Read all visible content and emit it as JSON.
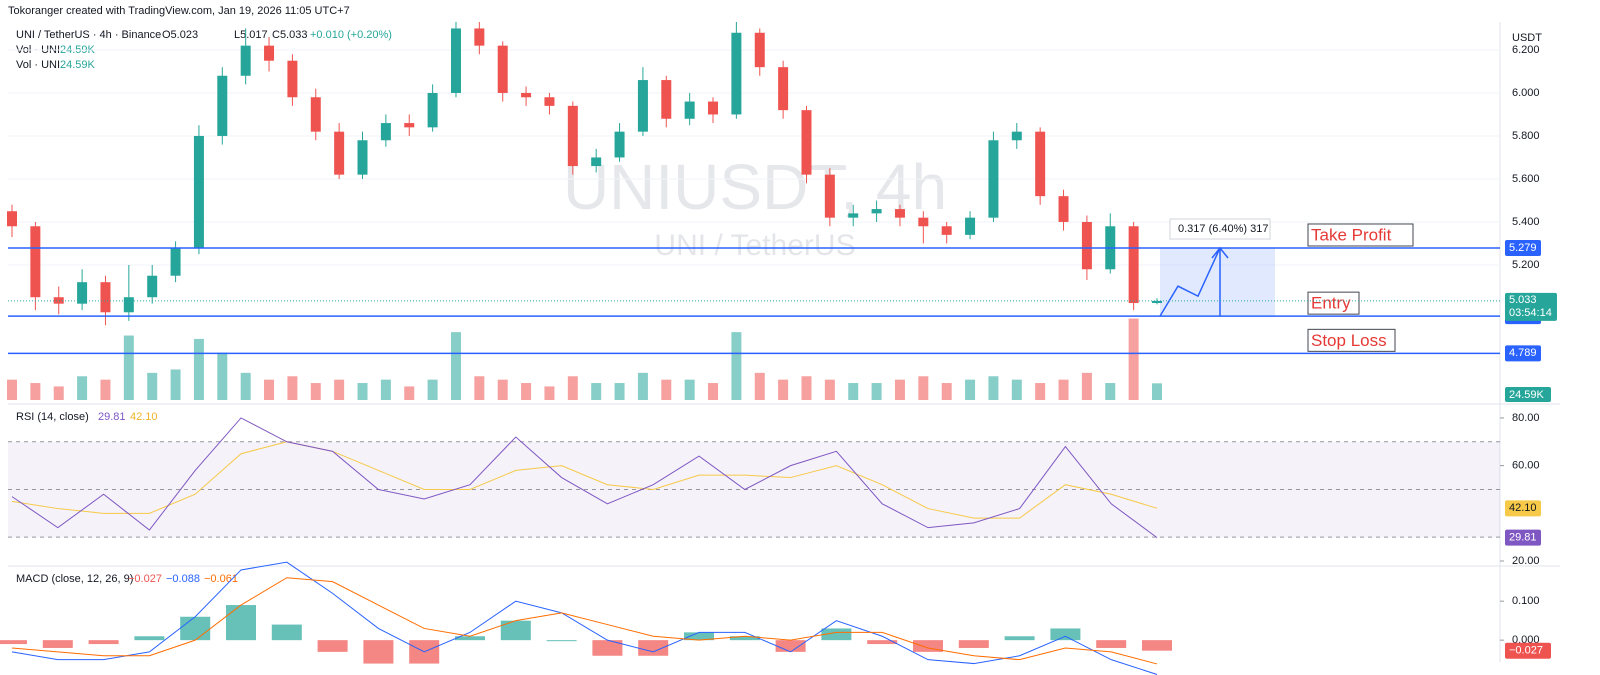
{
  "chart_data": {
    "type": "candlestick",
    "attribution": "Tokoranger created with TradingView.com, Jan 19, 2026 11:05 UTC+7",
    "symbol": "UNI / TetherUS · 4h · Binance",
    "ohlc_labels": [
      "O5.023",
      "L5.017",
      "C5.033"
    ],
    "change": "+0.010 (+0.20%)",
    "watermark": [
      "UNIUSDT, 4h",
      "UNI / TetherUS"
    ],
    "currency": "USDT",
    "up_color": "#26a69a",
    "down_color": "#ef5350",
    "candles": [
      [
        5.45,
        5.48,
        5.33,
        5.38
      ],
      [
        5.38,
        5.4,
        4.99,
        5.05
      ],
      [
        5.05,
        5.1,
        4.97,
        5.02
      ],
      [
        5.02,
        5.18,
        4.99,
        5.12
      ],
      [
        5.12,
        5.15,
        4.92,
        4.98
      ],
      [
        4.98,
        5.2,
        4.94,
        5.05
      ],
      [
        5.05,
        5.2,
        5.02,
        5.15
      ],
      [
        5.15,
        5.31,
        5.12,
        5.28
      ],
      [
        5.28,
        5.85,
        5.25,
        5.8
      ],
      [
        5.8,
        6.12,
        5.76,
        6.08
      ],
      [
        6.08,
        6.3,
        6.04,
        6.22
      ],
      [
        6.22,
        6.26,
        6.1,
        6.15
      ],
      [
        6.15,
        6.18,
        5.94,
        5.98
      ],
      [
        5.98,
        6.02,
        5.78,
        5.82
      ],
      [
        5.82,
        5.86,
        5.6,
        5.62
      ],
      [
        5.62,
        5.82,
        5.6,
        5.78
      ],
      [
        5.78,
        5.9,
        5.75,
        5.86
      ],
      [
        5.86,
        5.9,
        5.8,
        5.84
      ],
      [
        5.84,
        6.04,
        5.82,
        6.0
      ],
      [
        6.0,
        6.33,
        5.98,
        6.3
      ],
      [
        6.3,
        6.33,
        6.18,
        6.22
      ],
      [
        6.22,
        6.24,
        5.96,
        6.0
      ],
      [
        6.0,
        6.03,
        5.94,
        5.98
      ],
      [
        5.98,
        6.0,
        5.9,
        5.94
      ],
      [
        5.94,
        5.96,
        5.62,
        5.66
      ],
      [
        5.66,
        5.74,
        5.63,
        5.7
      ],
      [
        5.7,
        5.86,
        5.68,
        5.82
      ],
      [
        5.82,
        6.12,
        5.8,
        6.06
      ],
      [
        6.06,
        6.08,
        5.84,
        5.88
      ],
      [
        5.88,
        6.0,
        5.85,
        5.96
      ],
      [
        5.96,
        5.98,
        5.86,
        5.9
      ],
      [
        5.9,
        6.33,
        5.88,
        6.28
      ],
      [
        6.28,
        6.3,
        6.08,
        6.12
      ],
      [
        6.12,
        6.15,
        5.88,
        5.92
      ],
      [
        5.92,
        5.94,
        5.58,
        5.62
      ],
      [
        5.62,
        5.65,
        5.38,
        5.42
      ],
      [
        5.42,
        5.48,
        5.38,
        5.44
      ],
      [
        5.44,
        5.5,
        5.4,
        5.46
      ],
      [
        5.46,
        5.48,
        5.38,
        5.42
      ],
      [
        5.42,
        5.45,
        5.3,
        5.38
      ],
      [
        5.38,
        5.4,
        5.3,
        5.34
      ],
      [
        5.34,
        5.45,
        5.32,
        5.42
      ],
      [
        5.42,
        5.82,
        5.4,
        5.78
      ],
      [
        5.78,
        5.86,
        5.74,
        5.82
      ],
      [
        5.82,
        5.84,
        5.48,
        5.52
      ],
      [
        5.52,
        5.55,
        5.36,
        5.4
      ],
      [
        5.4,
        5.43,
        5.13,
        5.18
      ],
      [
        5.18,
        5.44,
        5.16,
        5.38
      ],
      [
        5.38,
        5.4,
        4.99,
        5.023
      ],
      [
        5.023,
        5.045,
        5.017,
        5.033
      ]
    ],
    "ylim": [
      4.572,
      6.33
    ],
    "yticks": [
      {
        "value": 5.2,
        "label": "5.200"
      },
      {
        "value": 5.4,
        "label": "5.400"
      },
      {
        "value": 5.6,
        "label": "5.600"
      },
      {
        "value": 5.8,
        "label": "5.800"
      },
      {
        "value": 6.0,
        "label": "6.000"
      },
      {
        "value": 6.2,
        "label": "6.200"
      }
    ],
    "levels": [
      {
        "name": "Take Profit",
        "value": 5.279
      },
      {
        "name": "Entry",
        "value": 4.962
      },
      {
        "name": "Stop Loss",
        "value": 4.789
      }
    ],
    "level_color": "#2962ff",
    "current_price": 5.033,
    "countdown": "03:54:14",
    "measure": "0.317 (6.40%) 317",
    "volume": {
      "name": "Vol · UNI",
      "values": [
        30,
        25,
        20,
        35,
        30,
        95,
        40,
        45,
        90,
        70,
        40,
        30,
        35,
        25,
        30,
        25,
        30,
        20,
        30,
        100,
        35,
        30,
        25,
        20,
        35,
        25,
        25,
        40,
        30,
        30,
        25,
        100,
        40,
        30,
        35,
        30,
        25,
        25,
        30,
        35,
        25,
        30,
        35,
        30,
        25,
        30,
        40,
        25,
        120,
        24.59
      ],
      "ylim": [
        0,
        140
      ],
      "last_value_label": "24.59K"
    },
    "rsi": {
      "name": "RSI (14, close)",
      "color": "#7e57c2",
      "ma_color": "#f7c948",
      "values": [
        47,
        34,
        48,
        33,
        58,
        80,
        70,
        66,
        50,
        46,
        52,
        72,
        55,
        44,
        52,
        64,
        50,
        60,
        66,
        44,
        34,
        36,
        42,
        68,
        44,
        29.81
      ],
      "ma": [
        45,
        42,
        40,
        40,
        48,
        65,
        70,
        66,
        58,
        50,
        50,
        58,
        60,
        52,
        50,
        56,
        56,
        55,
        60,
        52,
        42,
        38,
        38,
        52,
        48,
        42.1
      ],
      "last_labels": [
        "29.81",
        "42.10"
      ],
      "ylim": [
        18.33,
        84.17
      ],
      "bands": [
        30,
        50,
        70
      ],
      "yticks": [
        {
          "value": 80,
          "label": "80.00"
        },
        {
          "value": 60,
          "label": "60.00"
        },
        {
          "value": 20,
          "label": "20.00"
        }
      ]
    },
    "macd": {
      "name": "MACD (close, 12, 26, 9)",
      "macd_color": "#2962ff",
      "signal_color": "#ff6d00",
      "macd": [
        -0.03,
        -0.05,
        -0.05,
        -0.03,
        0.06,
        0.18,
        0.2,
        0.12,
        0.03,
        -0.03,
        0.02,
        0.1,
        0.07,
        0.0,
        -0.03,
        0.02,
        0.02,
        -0.03,
        0.05,
        0.01,
        -0.05,
        -0.06,
        -0.04,
        0.01,
        -0.05,
        -0.088
      ],
      "signal": [
        -0.02,
        -0.03,
        -0.04,
        -0.04,
        0.0,
        0.09,
        0.16,
        0.15,
        0.09,
        0.03,
        0.01,
        0.05,
        0.07,
        0.04,
        0.01,
        0.0,
        0.01,
        0.0,
        0.02,
        0.02,
        -0.02,
        -0.04,
        -0.05,
        -0.02,
        -0.03,
        -0.061
      ],
      "histogram": [
        -0.01,
        -0.02,
        -0.01,
        0.01,
        0.06,
        0.09,
        0.04,
        -0.03,
        -0.06,
        -0.06,
        0.01,
        0.05,
        0.0,
        -0.04,
        -0.04,
        0.02,
        0.01,
        -0.03,
        0.03,
        -0.01,
        -0.03,
        -0.02,
        0.01,
        0.03,
        -0.02,
        -0.027
      ],
      "last_labels": [
        "−0.027",
        "−0.088",
        "−0.061"
      ],
      "ylim": [
        -0.056,
        0.185
      ],
      "yticks": [
        {
          "value": 0.1,
          "label": "0.100"
        },
        {
          "value": 0,
          "label": "0.000"
        }
      ]
    }
  }
}
